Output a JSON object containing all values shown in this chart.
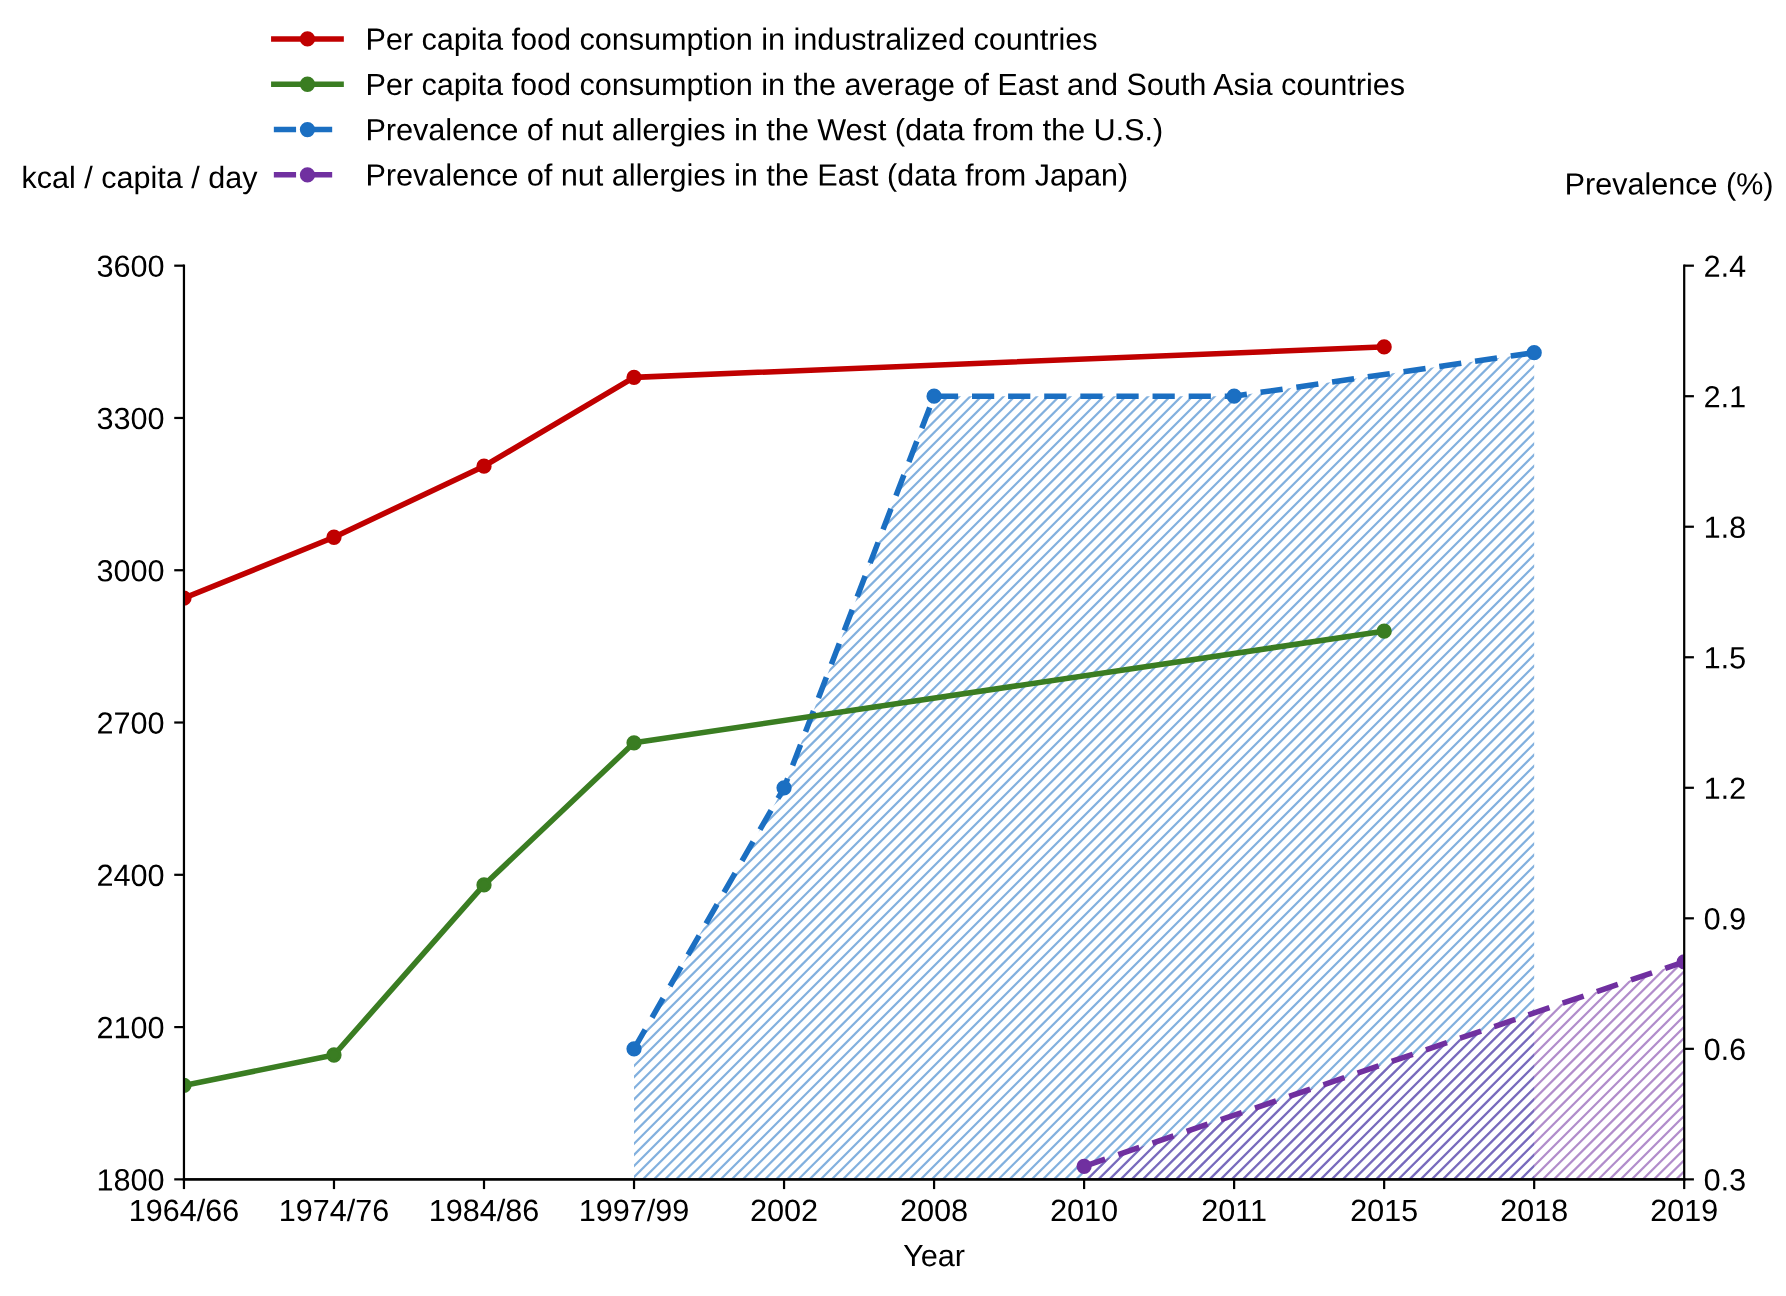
{
  "chart_data": {
    "type": "line",
    "xlabel": "Year",
    "ylabel": "kcal / capita / day",
    "y2label": "Prevalence (%)",
    "categories": [
      "1964/66",
      "1974/76",
      "1984/86",
      "1997/99",
      "2002",
      "2008",
      "2010",
      "2011",
      "2015",
      "2018",
      "2019"
    ],
    "series": [
      {
        "name": "Per capita food consumption in industralized countries",
        "color": "#c00000",
        "values": [
          2945,
          3065,
          3205,
          3380,
          null,
          null,
          null,
          null,
          3440,
          null,
          null
        ]
      },
      {
        "name": "Per capita food consumption in the average of East and South Asia countries",
        "color": "#3a7d22",
        "values": [
          1985,
          2045,
          2380,
          2660,
          null,
          null,
          null,
          null,
          2880,
          null,
          null
        ]
      },
      {
        "name": "Prevalence of nut allergies in the West (data from the U.S.)",
        "type": "area",
        "axis": "y2",
        "line_style": "dashed",
        "color": "#1b6fc2",
        "values": [
          null,
          null,
          null,
          0.6,
          1.2,
          2.1,
          null,
          2.1,
          null,
          2.2,
          null
        ]
      },
      {
        "name": "Prevalence of nut allergies in the East (data from Japan)",
        "type": "area",
        "axis": "y2",
        "line_style": "dashed",
        "color": "#7030a0",
        "values": [
          null,
          null,
          null,
          null,
          null,
          null,
          0.33,
          null,
          null,
          null,
          0.8
        ]
      }
    ],
    "ylim": [
      1800,
      3600
    ],
    "yticks": [
      1800,
      2100,
      2400,
      2700,
      3000,
      3300,
      3600
    ],
    "y2lim": [
      0.3,
      2.4
    ],
    "y2ticks": [
      0.3,
      0.6,
      0.9,
      1.2,
      1.5,
      1.8,
      2.1,
      2.4
    ],
    "marker": "circle",
    "line_style": "solid",
    "grid": false,
    "legend": "top"
  }
}
